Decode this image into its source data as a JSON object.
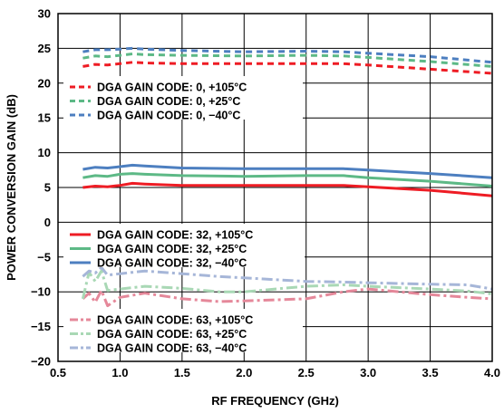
{
  "chart_data": {
    "type": "line",
    "title": "",
    "xlabel": "RF FREQUENCY (GHz)",
    "ylabel": "POWER CONVERSION GAIN (dB)",
    "xlim": [
      0.5,
      4.0
    ],
    "ylim": [
      -20,
      30
    ],
    "xticks": [
      "0.5",
      "1.0",
      "1.5",
      "2.0",
      "2.5",
      "3.0",
      "3.5",
      "4.0"
    ],
    "yticks": [
      "30",
      "25",
      "20",
      "15",
      "10",
      "5",
      "0",
      "−5",
      "−10",
      "−15",
      "−20"
    ],
    "grid": true,
    "series": [
      {
        "name": "DGA GAIN CODE: 0, +105°C",
        "color": "#ee1c24",
        "style": "dashed",
        "x": [
          0.7,
          0.8,
          0.9,
          1.0,
          1.1,
          1.2,
          1.5,
          2.0,
          2.5,
          2.8,
          3.0,
          3.5,
          4.0
        ],
        "y": [
          22.4,
          22.7,
          22.6,
          22.8,
          23.0,
          22.9,
          22.8,
          22.8,
          22.8,
          22.8,
          22.6,
          22.0,
          21.4
        ]
      },
      {
        "name": "DGA GAIN CODE: 0, +25°C",
        "color": "#5db986",
        "style": "dashed",
        "x": [
          0.7,
          0.8,
          0.9,
          1.0,
          1.1,
          1.2,
          1.5,
          2.0,
          2.5,
          2.8,
          3.0,
          3.5,
          4.0
        ],
        "y": [
          23.6,
          23.9,
          23.8,
          24.0,
          24.2,
          24.1,
          24.0,
          23.9,
          24.0,
          23.9,
          23.7,
          23.1,
          22.4
        ]
      },
      {
        "name": "DGA GAIN CODE: 0, −40°C",
        "color": "#4d7fc0",
        "style": "dashed",
        "x": [
          0.7,
          0.8,
          0.9,
          1.0,
          1.1,
          1.2,
          1.5,
          2.0,
          2.5,
          2.8,
          3.0,
          3.5,
          4.0
        ],
        "y": [
          24.5,
          24.8,
          24.8,
          24.9,
          25.0,
          24.9,
          24.7,
          24.5,
          24.6,
          24.5,
          24.3,
          23.8,
          23.0
        ]
      },
      {
        "name": "DGA GAIN CODE: 32, +105°C",
        "color": "#ee1c24",
        "style": "solid",
        "x": [
          0.7,
          0.8,
          0.9,
          1.0,
          1.1,
          1.2,
          1.5,
          2.0,
          2.5,
          2.8,
          3.0,
          3.5,
          4.0
        ],
        "y": [
          5.0,
          5.2,
          5.1,
          5.3,
          5.6,
          5.5,
          5.3,
          5.3,
          5.3,
          5.3,
          5.1,
          4.6,
          3.8
        ]
      },
      {
        "name": "DGA GAIN CODE: 32, +25°C",
        "color": "#5db986",
        "style": "solid",
        "x": [
          0.7,
          0.8,
          0.9,
          1.0,
          1.1,
          1.2,
          1.5,
          2.0,
          2.5,
          2.8,
          3.0,
          3.5,
          4.0
        ],
        "y": [
          6.4,
          6.7,
          6.6,
          6.9,
          7.0,
          6.9,
          6.7,
          6.6,
          6.7,
          6.7,
          6.4,
          5.9,
          5.2
        ]
      },
      {
        "name": "DGA GAIN CODE: 32, −40°C",
        "color": "#4d7fc0",
        "style": "solid",
        "x": [
          0.7,
          0.8,
          0.9,
          1.0,
          1.1,
          1.2,
          1.5,
          2.0,
          2.5,
          2.8,
          3.0,
          3.5,
          4.0
        ],
        "y": [
          7.6,
          7.9,
          7.8,
          8.0,
          8.2,
          8.1,
          7.8,
          7.7,
          7.7,
          7.7,
          7.5,
          7.0,
          6.4
        ]
      },
      {
        "name": "DGA GAIN CODE: 63, +105°C",
        "color": "#e5889a",
        "style": "dashdot",
        "x": [
          0.7,
          0.75,
          0.8,
          0.85,
          0.9,
          1.0,
          1.2,
          1.5,
          1.8,
          2.0,
          2.5,
          2.8,
          3.0,
          3.5,
          3.8,
          4.0
        ],
        "y": [
          -11.0,
          -10.2,
          -11.5,
          -9.8,
          -12.0,
          -10.8,
          -10.2,
          -11.0,
          -11.4,
          -11.3,
          -11.0,
          -10.0,
          -9.6,
          -10.4,
          -10.8,
          -11.0
        ]
      },
      {
        "name": "DGA GAIN CODE: 63, +25°C",
        "color": "#a9d8b5",
        "style": "dashdot",
        "x": [
          0.7,
          0.75,
          0.8,
          0.85,
          0.9,
          1.0,
          1.2,
          1.5,
          1.8,
          2.0,
          2.5,
          2.8,
          3.0,
          3.5,
          3.8,
          4.0
        ],
        "y": [
          -11.0,
          -7.2,
          -8.5,
          -7.0,
          -9.8,
          -9.6,
          -9.2,
          -9.5,
          -10.0,
          -10.0,
          -9.2,
          -9.0,
          -9.2,
          -9.6,
          -9.9,
          -10.3
        ]
      },
      {
        "name": "DGA GAIN CODE: 63, −40°C",
        "color": "#a6b6d8",
        "style": "dashdot",
        "x": [
          0.7,
          0.75,
          0.8,
          0.85,
          0.9,
          1.0,
          1.2,
          1.5,
          1.8,
          2.0,
          2.5,
          2.8,
          3.0,
          3.5,
          3.8,
          4.0
        ],
        "y": [
          -7.8,
          -7.0,
          -7.3,
          -6.5,
          -7.6,
          -7.4,
          -7.0,
          -7.4,
          -7.8,
          -8.0,
          -8.5,
          -8.6,
          -8.7,
          -8.9,
          -9.0,
          -9.6
        ]
      }
    ]
  }
}
